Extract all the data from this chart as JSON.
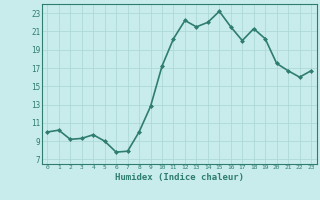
{
  "x": [
    0,
    1,
    2,
    3,
    4,
    5,
    6,
    7,
    8,
    9,
    10,
    11,
    12,
    13,
    14,
    15,
    16,
    17,
    18,
    19,
    20,
    21,
    22,
    23
  ],
  "y": [
    10.0,
    10.2,
    9.2,
    9.3,
    9.7,
    9.0,
    7.8,
    7.9,
    10.0,
    12.8,
    17.2,
    20.2,
    22.2,
    21.5,
    22.0,
    23.2,
    21.5,
    20.0,
    21.3,
    20.2,
    17.5,
    16.7,
    16.0,
    16.7
  ],
  "line_color": "#2e7d6e",
  "marker": "D",
  "marker_size": 2.0,
  "bg_color": "#c8ecec",
  "grid_color": "#aed8d8",
  "tick_color": "#2e7d6e",
  "label_color": "#2e7d6e",
  "xlabel": "Humidex (Indice chaleur)",
  "xlim": [
    -0.5,
    23.5
  ],
  "ylim": [
    6.5,
    24.0
  ],
  "yticks": [
    7,
    9,
    11,
    13,
    15,
    17,
    19,
    21,
    23
  ],
  "xticks": [
    0,
    1,
    2,
    3,
    4,
    5,
    6,
    7,
    8,
    9,
    10,
    11,
    12,
    13,
    14,
    15,
    16,
    17,
    18,
    19,
    20,
    21,
    22,
    23
  ],
  "linewidth": 1.2,
  "spine_color": "#2e7d6e"
}
